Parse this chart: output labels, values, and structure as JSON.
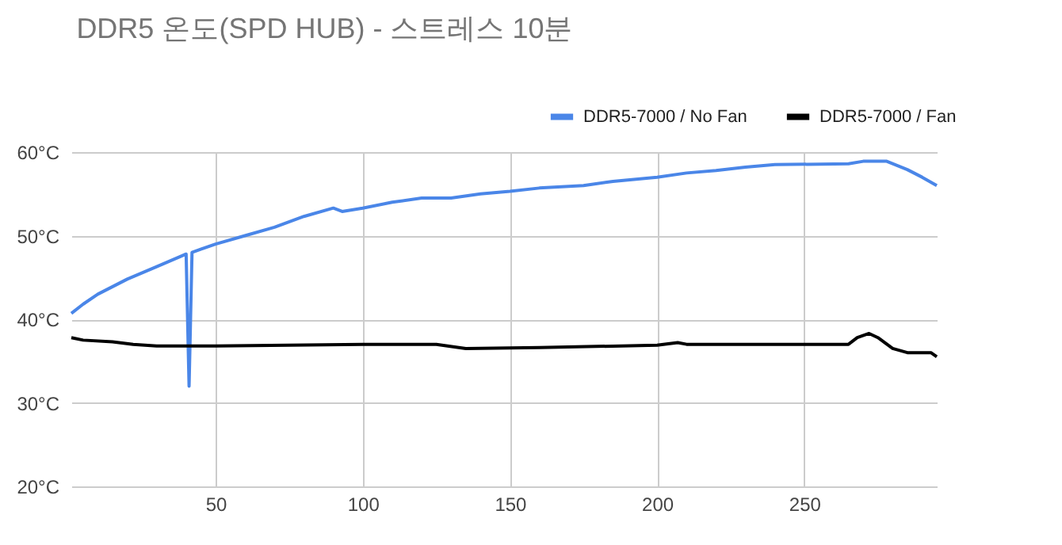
{
  "chart_data": {
    "type": "line",
    "title": "DDR5 온도(SPD HUB) - 스트레스 10분",
    "series": [
      {
        "name": "DDR5-7000 / No Fan",
        "color": "#4a86e8",
        "x": [
          1,
          5,
          10,
          20,
          30,
          38,
          40,
          41,
          42,
          50,
          60,
          70,
          80,
          90,
          93,
          100,
          110,
          120,
          130,
          140,
          150,
          160,
          175,
          185,
          200,
          210,
          220,
          230,
          240,
          265,
          270,
          278,
          285,
          290,
          295
        ],
        "values": [
          40.7,
          41.8,
          43,
          44.8,
          46.3,
          47.5,
          47.8,
          32,
          48,
          49,
          50,
          51,
          52.3,
          53.3,
          52.9,
          53.3,
          54,
          54.5,
          54.5,
          55,
          55.3,
          55.7,
          56,
          56.5,
          57,
          57.5,
          57.8,
          58.2,
          58.5,
          58.6,
          58.9,
          58.9,
          57.9,
          57,
          56
        ]
      },
      {
        "name": "DDR5-7000 / Fan",
        "color": "#000000",
        "x": [
          1,
          5,
          15,
          22,
          30,
          50,
          100,
          125,
          135,
          160,
          200,
          207,
          210,
          265,
          268,
          272,
          275,
          280,
          285,
          293,
          295
        ],
        "values": [
          37.8,
          37.5,
          37.3,
          37,
          36.8,
          36.8,
          37,
          37,
          36.5,
          36.6,
          36.9,
          37.2,
          37,
          37,
          37.8,
          38.3,
          37.8,
          36.5,
          36,
          36,
          35.5
        ]
      }
    ],
    "xlim": [
      1,
      295
    ],
    "xticks": [
      50,
      100,
      150,
      200,
      250
    ],
    "ylim": [
      20,
      60
    ],
    "yticks": [
      {
        "value": 20,
        "label": "20°C"
      },
      {
        "value": 30,
        "label": "30°C"
      },
      {
        "value": 40,
        "label": "40°C"
      },
      {
        "value": 50,
        "label": "50°C"
      },
      {
        "value": 60,
        "label": "60°C"
      }
    ],
    "grid": true,
    "legend": "top right",
    "marker": "none",
    "line_style": "solid"
  }
}
